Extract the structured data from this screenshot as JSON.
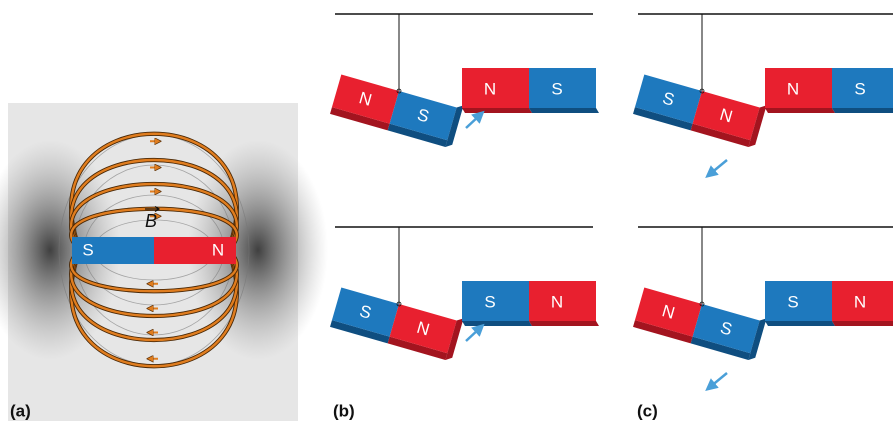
{
  "panels": [
    {
      "label": "(a)",
      "field_label": "B",
      "magnet": [
        "S",
        "N"
      ]
    },
    {
      "label": "(b)",
      "scenes": [
        {
          "hanging": [
            "N",
            "S"
          ],
          "fixed": [
            "N",
            "S"
          ]
        },
        {
          "hanging": [
            "S",
            "N"
          ],
          "fixed": [
            "S",
            "N"
          ]
        }
      ]
    },
    {
      "label": "(c)",
      "scenes": [
        {
          "hanging": [
            "S",
            "N"
          ],
          "fixed": [
            "N",
            "S"
          ]
        },
        {
          "hanging": [
            "N",
            "S"
          ],
          "fixed": [
            "S",
            "N"
          ]
        }
      ]
    }
  ]
}
